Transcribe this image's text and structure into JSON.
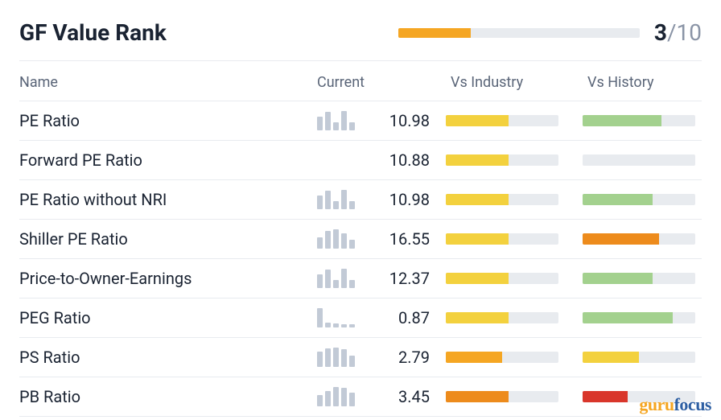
{
  "header": {
    "title": "GF Value Rank",
    "rank_value": "3",
    "rank_denom": "/10",
    "rank_fill_pct": 30,
    "rank_fill_color": "#f5a623",
    "rank_bg_color": "#e8ebef"
  },
  "columns": {
    "name": "Name",
    "current": "Current",
    "industry": "Vs Industry",
    "history": "Vs History"
  },
  "colors": {
    "yellow": "#f3d13e",
    "orange": "#f5a623",
    "dark_orange": "#ed8b1c",
    "green": "#a3d18e",
    "red": "#d9362b",
    "bar_bg": "#e8ebef",
    "spark": "#c2cad6"
  },
  "rows": [
    {
      "name": "PE Ratio",
      "value": "10.98",
      "spark": [
        70,
        95,
        40,
        100,
        40
      ],
      "industry": {
        "pct": 56,
        "color": "#f3d13e"
      },
      "history": {
        "pct": 70,
        "color": "#a3d18e"
      }
    },
    {
      "name": "Forward PE Ratio",
      "value": "10.88",
      "spark": null,
      "industry": {
        "pct": 56,
        "color": "#f3d13e"
      },
      "history": {
        "pct": 0,
        "color": "#e8ebef"
      }
    },
    {
      "name": "PE Ratio without NRI",
      "value": "10.98",
      "spark": [
        70,
        95,
        40,
        100,
        40
      ],
      "industry": {
        "pct": 56,
        "color": "#f3d13e"
      },
      "history": {
        "pct": 62,
        "color": "#a3d18e"
      }
    },
    {
      "name": "Shiller PE Ratio",
      "value": "16.55",
      "spark": [
        60,
        90,
        100,
        80,
        45
      ],
      "industry": {
        "pct": 56,
        "color": "#f3d13e"
      },
      "history": {
        "pct": 68,
        "color": "#ed8b1c"
      }
    },
    {
      "name": "Price-to-Owner-Earnings",
      "value": "12.37",
      "spark": [
        70,
        95,
        40,
        100,
        40
      ],
      "industry": {
        "pct": 56,
        "color": "#f3d13e"
      },
      "history": {
        "pct": 62,
        "color": "#a3d18e"
      }
    },
    {
      "name": "PEG Ratio",
      "value": "0.87",
      "spark": [
        100,
        25,
        20,
        18,
        15
      ],
      "industry": {
        "pct": 56,
        "color": "#f3d13e"
      },
      "history": {
        "pct": 80,
        "color": "#a3d18e"
      }
    },
    {
      "name": "PS Ratio",
      "value": "2.79",
      "spark": [
        80,
        95,
        100,
        90,
        60
      ],
      "industry": {
        "pct": 50,
        "color": "#f5a623"
      },
      "history": {
        "pct": 50,
        "color": "#f3d13e"
      }
    },
    {
      "name": "PB Ratio",
      "value": "3.45",
      "spark": [
        60,
        80,
        100,
        95,
        70
      ],
      "industry": {
        "pct": 56,
        "color": "#ed8b1c"
      },
      "history": {
        "pct": 40,
        "color": "#d9362b"
      }
    }
  ],
  "watermark": {
    "part1": "guru",
    "part2": "focus"
  }
}
